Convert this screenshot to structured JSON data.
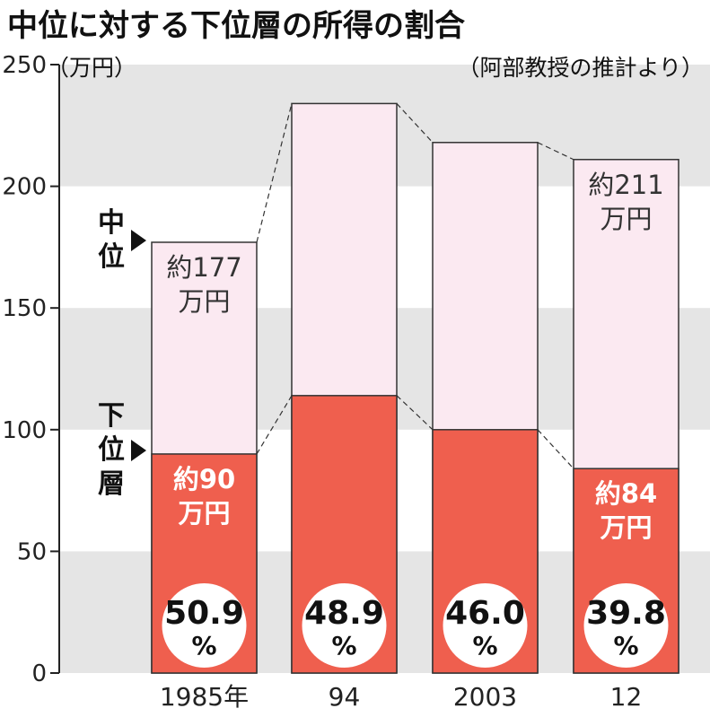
{
  "title": "中位に対する下位層の所得の割合",
  "source": "（阿部教授の推計より）",
  "unit": "（万円）",
  "side_labels": {
    "middle": [
      "中",
      "位"
    ],
    "lower": [
      "下",
      "位",
      "層"
    ]
  },
  "colors": {
    "middle": "#fbe9f1",
    "lower": "#ef5f4e",
    "band": "#e5e5e5",
    "label_on_lower": "#ffffff",
    "label_on_middle": "#333333"
  },
  "chart_data": {
    "type": "bar",
    "categories": [
      "1985年",
      "94",
      "2003",
      "12"
    ],
    "series": [
      {
        "name": "中位",
        "values": [
          177,
          234,
          218,
          211
        ]
      },
      {
        "name": "下位層",
        "values": [
          90,
          114,
          100,
          84
        ]
      }
    ],
    "percent_labels": [
      {
        "value": "50.9",
        "unit": "%"
      },
      {
        "value": "48.9",
        "unit": "%"
      },
      {
        "value": "46.0",
        "unit": "%"
      },
      {
        "value": "39.8",
        "unit": "%"
      }
    ],
    "annotations": [
      {
        "category_index": 0,
        "series": "中位",
        "lines": [
          "約177",
          "万円"
        ]
      },
      {
        "category_index": 3,
        "series": "中位",
        "lines": [
          "約211",
          "万円"
        ]
      },
      {
        "category_index": 0,
        "series": "下位層",
        "lines": [
          "約90",
          "万円"
        ]
      },
      {
        "category_index": 3,
        "series": "下位層",
        "lines": [
          "約84",
          "万円"
        ]
      }
    ],
    "ylim": [
      0,
      250
    ],
    "yticks": [
      "0",
      "50",
      "100",
      "150",
      "200",
      "250"
    ],
    "grid": "alternating bands",
    "overlap": true
  }
}
